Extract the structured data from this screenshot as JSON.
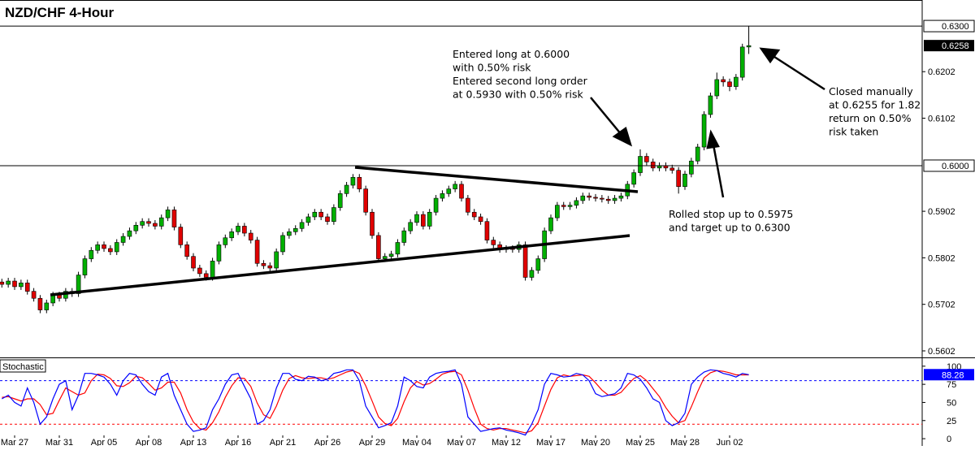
{
  "chart_data": [
    {
      "type": "candlestick",
      "title": "NZD/CHF 4-Hour",
      "x": [
        null,
        null,
        "Mar 27",
        null,
        null,
        null,
        null,
        null,
        null,
        "Mar 31",
        null,
        null,
        null,
        null,
        null,
        null,
        "Apr 05",
        null,
        null,
        null,
        null,
        null,
        null,
        "Apr 08",
        null,
        null,
        null,
        null,
        null,
        null,
        "Apr 13",
        null,
        null,
        null,
        null,
        null,
        null,
        "Apr 16",
        null,
        null,
        null,
        null,
        null,
        null,
        "Apr 21",
        null,
        null,
        null,
        null,
        null,
        null,
        "Apr 26",
        null,
        null,
        null,
        null,
        null,
        null,
        "Apr 29",
        null,
        null,
        null,
        null,
        null,
        null,
        "May 04",
        null,
        null,
        null,
        null,
        null,
        null,
        "May 07",
        null,
        null,
        null,
        null,
        null,
        null,
        "May 12",
        null,
        null,
        null,
        null,
        null,
        null,
        "May 17",
        null,
        null,
        null,
        null,
        null,
        null,
        "May 20",
        null,
        null,
        null,
        null,
        null,
        null,
        "May 25",
        null,
        null,
        null,
        null,
        null,
        null,
        "May 28",
        null,
        null,
        null,
        null,
        null,
        null,
        "Jun 02",
        null,
        null,
        null
      ],
      "open": [
        0.575,
        0.5745,
        0.5752,
        0.574,
        0.5748,
        0.573,
        0.5715,
        0.569,
        0.5705,
        0.5722,
        0.5715,
        0.573,
        0.5725,
        0.5765,
        0.58,
        0.5818,
        0.583,
        0.5822,
        0.5815,
        0.5835,
        0.5848,
        0.586,
        0.5872,
        0.588,
        0.5876,
        0.587,
        0.5888,
        0.5905,
        0.5868,
        0.583,
        0.5805,
        0.578,
        0.5768,
        0.576,
        0.5795,
        0.583,
        0.5845,
        0.5858,
        0.587,
        0.5855,
        0.584,
        0.579,
        0.5785,
        0.578,
        0.5815,
        0.585,
        0.5858,
        0.5865,
        0.5878,
        0.589,
        0.59,
        0.589,
        0.588,
        0.591,
        0.594,
        0.5958,
        0.5975,
        0.595,
        0.59,
        0.585,
        0.58,
        0.5805,
        0.581,
        0.5835,
        0.586,
        0.5878,
        0.5895,
        0.587,
        0.59,
        0.593,
        0.594,
        0.595,
        0.596,
        0.593,
        0.59,
        0.589,
        0.588,
        0.584,
        0.583,
        0.582,
        0.5822,
        0.582,
        0.583,
        0.576,
        0.5775,
        0.58,
        0.586,
        0.5888,
        0.5915,
        0.5912,
        0.5915,
        0.5925,
        0.5935,
        0.5932,
        0.593,
        0.5928,
        0.5925,
        0.593,
        0.5935,
        0.596,
        0.5985,
        0.602,
        0.6008,
        0.5995,
        0.6,
        0.5995,
        0.599,
        0.5955,
        0.5982,
        0.601,
        0.604,
        0.611,
        0.615,
        0.6185,
        0.618,
        0.617,
        0.619,
        0.6255
      ],
      "high": [
        0.5757,
        0.5759,
        0.5759,
        0.5755,
        0.5755,
        0.5737,
        0.5722,
        0.5712,
        0.5729,
        0.5729,
        0.5737,
        0.5737,
        0.5772,
        0.5807,
        0.5825,
        0.5837,
        0.5837,
        0.5829,
        0.5842,
        0.5855,
        0.5867,
        0.5879,
        0.5887,
        0.5887,
        0.5883,
        0.5895,
        0.5912,
        0.5912,
        0.5875,
        0.5837,
        0.5812,
        0.5787,
        0.5775,
        0.5802,
        0.5837,
        0.5852,
        0.5865,
        0.5877,
        0.5877,
        0.5862,
        0.5847,
        0.5797,
        0.5792,
        0.5822,
        0.5857,
        0.5865,
        0.5872,
        0.5885,
        0.5897,
        0.5907,
        0.5907,
        0.5897,
        0.5917,
        0.5947,
        0.5965,
        0.5982,
        0.5982,
        0.5957,
        0.5907,
        0.5857,
        0.5812,
        0.5817,
        0.5842,
        0.5867,
        0.5885,
        0.5902,
        0.5902,
        0.5907,
        0.5937,
        0.5947,
        0.5957,
        0.5967,
        0.5967,
        0.5937,
        0.5907,
        0.5897,
        0.5887,
        0.5847,
        0.5837,
        0.5829,
        0.5829,
        0.5837,
        0.5837,
        0.5782,
        0.5807,
        0.5867,
        0.5895,
        0.5922,
        0.5922,
        0.5922,
        0.5932,
        0.5942,
        0.5942,
        0.5939,
        0.5937,
        0.5935,
        0.5937,
        0.5942,
        0.5967,
        0.5992,
        0.6035,
        0.6027,
        0.6015,
        0.6007,
        0.6007,
        0.6002,
        0.5997,
        0.5989,
        0.6017,
        0.6047,
        0.6117,
        0.6157,
        0.62,
        0.6192,
        0.6187,
        0.6197,
        0.6262,
        0.63
      ],
      "low": [
        0.5738,
        0.5738,
        0.5733,
        0.5733,
        0.5723,
        0.5708,
        0.5683,
        0.5683,
        0.5698,
        0.5708,
        0.5708,
        0.5718,
        0.5718,
        0.5758,
        0.5793,
        0.5811,
        0.5815,
        0.5808,
        0.5808,
        0.5828,
        0.5841,
        0.5853,
        0.5865,
        0.5869,
        0.5863,
        0.5863,
        0.5881,
        0.5861,
        0.5823,
        0.5798,
        0.5773,
        0.5761,
        0.5753,
        0.5753,
        0.5788,
        0.5823,
        0.5838,
        0.5851,
        0.5848,
        0.5833,
        0.5783,
        0.5778,
        0.5773,
        0.5773,
        0.5808,
        0.5843,
        0.5851,
        0.5858,
        0.5871,
        0.5883,
        0.5883,
        0.5873,
        0.5873,
        0.5903,
        0.5933,
        0.5951,
        0.5943,
        0.5893,
        0.5843,
        0.5793,
        0.5793,
        0.5798,
        0.5803,
        0.5828,
        0.5853,
        0.5871,
        0.5863,
        0.5863,
        0.5893,
        0.5923,
        0.5933,
        0.5943,
        0.5923,
        0.5893,
        0.5883,
        0.5873,
        0.5833,
        0.5823,
        0.5813,
        0.5813,
        0.5813,
        0.5813,
        0.5753,
        0.5753,
        0.5768,
        0.5793,
        0.5853,
        0.5881,
        0.5905,
        0.5905,
        0.5908,
        0.5918,
        0.5925,
        0.5923,
        0.5921,
        0.5918,
        0.5918,
        0.5923,
        0.5928,
        0.5953,
        0.5978,
        0.6001,
        0.5988,
        0.5988,
        0.5988,
        0.5983,
        0.594,
        0.5948,
        0.5975,
        0.6003,
        0.6033,
        0.6103,
        0.6143,
        0.617,
        0.616,
        0.6163,
        0.6183,
        0.624
      ],
      "close": [
        0.5745,
        0.5752,
        0.574,
        0.5748,
        0.573,
        0.5715,
        0.569,
        0.5705,
        0.5722,
        0.5715,
        0.573,
        0.5725,
        0.5765,
        0.58,
        0.5818,
        0.583,
        0.5822,
        0.5815,
        0.5835,
        0.5848,
        0.586,
        0.5872,
        0.588,
        0.5876,
        0.587,
        0.5888,
        0.5905,
        0.5868,
        0.583,
        0.5805,
        0.578,
        0.5768,
        0.576,
        0.5795,
        0.583,
        0.5845,
        0.5858,
        0.587,
        0.5855,
        0.584,
        0.579,
        0.5785,
        0.578,
        0.5815,
        0.585,
        0.5858,
        0.5865,
        0.5878,
        0.589,
        0.59,
        0.589,
        0.588,
        0.591,
        0.594,
        0.5958,
        0.5975,
        0.595,
        0.59,
        0.585,
        0.58,
        0.5805,
        0.581,
        0.5835,
        0.586,
        0.5878,
        0.5895,
        0.587,
        0.59,
        0.593,
        0.594,
        0.595,
        0.596,
        0.593,
        0.59,
        0.589,
        0.588,
        0.584,
        0.583,
        0.582,
        0.5822,
        0.582,
        0.583,
        0.576,
        0.5775,
        0.58,
        0.586,
        0.5888,
        0.5915,
        0.5912,
        0.5915,
        0.5925,
        0.5935,
        0.5932,
        0.593,
        0.5928,
        0.5925,
        0.593,
        0.5935,
        0.596,
        0.5985,
        0.602,
        0.6008,
        0.5995,
        0.6,
        0.5995,
        0.599,
        0.5955,
        0.5982,
        0.601,
        0.604,
        0.611,
        0.615,
        0.6185,
        0.618,
        0.617,
        0.619,
        0.6255,
        0.6258
      ],
      "up_color": "#00b000",
      "down_color": "#e00000",
      "ylim": [
        0.5588,
        0.6356
      ],
      "yticks": [
        0.6202,
        0.6102,
        0.5902,
        0.5802,
        0.5702,
        0.5602
      ],
      "hlines": [
        {
          "value": 0.63,
          "label": "0.6300"
        },
        {
          "value": 0.6,
          "label": "0.6000"
        }
      ],
      "last_price": {
        "value": 0.6258,
        "label": "0.6258"
      },
      "annotations": [
        [
          "Entered long at 0.6000",
          "with 0.50% risk",
          "Entered second long order",
          "at 0.5930 with 0.50% risk"
        ],
        [
          "Closed manually",
          "at 0.6255 for 1.82",
          "return on 0.50%",
          "risk taken"
        ],
        [
          "Rolled stop up to 0.5975",
          "and target up to 0.6300"
        ]
      ]
    },
    {
      "type": "line",
      "title": "Stochastic",
      "series": [
        {
          "color": "#ff0000",
          "values": [
            57,
            58,
            55,
            52,
            55,
            55,
            47,
            33,
            35,
            53,
            70,
            65,
            60,
            63,
            80,
            89,
            88,
            83,
            73,
            72,
            77,
            86,
            84,
            76,
            67,
            70,
            78,
            78,
            63,
            40,
            23,
            14,
            12,
            22,
            37,
            57,
            73,
            84,
            83,
            72,
            49,
            33,
            28,
            45,
            67,
            83,
            87,
            84,
            83,
            84,
            84,
            82,
            84,
            88,
            92,
            94,
            90,
            73,
            52,
            30,
            21,
            18,
            28,
            51,
            70,
            79,
            74,
            76,
            82,
            89,
            92,
            93,
            88,
            67,
            42,
            20,
            14,
            12,
            14,
            14,
            12,
            10,
            8,
            11,
            22,
            45,
            68,
            84,
            88,
            86,
            87,
            88,
            86,
            77,
            67,
            60,
            60,
            64,
            74,
            83,
            87,
            80,
            69,
            58,
            43,
            31,
            22,
            25,
            44,
            65,
            84,
            91,
            94,
            93,
            91,
            88,
            88,
            88
          ]
        },
        {
          "color": "#0000ff",
          "label_last": true,
          "values": [
            55,
            60,
            50,
            45,
            70,
            50,
            20,
            30,
            55,
            75,
            80,
            40,
            60,
            90,
            90,
            88,
            85,
            75,
            60,
            80,
            90,
            88,
            75,
            65,
            60,
            85,
            90,
            60,
            40,
            20,
            10,
            12,
            15,
            40,
            55,
            75,
            88,
            90,
            72,
            55,
            20,
            25,
            40,
            70,
            90,
            90,
            82,
            80,
            86,
            85,
            80,
            82,
            90,
            92,
            95,
            95,
            80,
            45,
            30,
            15,
            18,
            22,
            45,
            85,
            80,
            72,
            70,
            85,
            90,
            92,
            93,
            95,
            75,
            30,
            20,
            10,
            12,
            14,
            15,
            12,
            10,
            8,
            5,
            20,
            40,
            75,
            90,
            88,
            85,
            86,
            90,
            88,
            80,
            62,
            58,
            60,
            62,
            70,
            90,
            88,
            82,
            70,
            55,
            50,
            25,
            18,
            22,
            35,
            75,
            85,
            92,
            95,
            94,
            90,
            88,
            85,
            90,
            88.28
          ]
        }
      ],
      "ylim": [
        -10,
        111
      ],
      "yticks": [
        100,
        75,
        50,
        25,
        0
      ],
      "levels": [
        {
          "value": 80,
          "color": "#0000ff"
        },
        {
          "value": 20,
          "color": "#ff0000"
        }
      ]
    }
  ]
}
